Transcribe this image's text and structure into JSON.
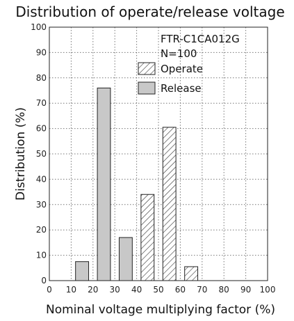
{
  "chart_data": {
    "type": "bar",
    "title": "Distribution of operate/release voltage",
    "xlabel": "Nominal voltage multiplying factor (%)",
    "ylabel": "Distribution (%)",
    "xlim": [
      0,
      100
    ],
    "ylim": [
      0,
      100
    ],
    "xticks": [
      "0",
      "10",
      "20",
      "30",
      "40",
      "50",
      "60",
      "70",
      "80",
      "90",
      "100"
    ],
    "yticks": [
      "0",
      "10",
      "20",
      "30",
      "40",
      "50",
      "60",
      "70",
      "80",
      "90",
      "100"
    ],
    "grid": true,
    "annotations": [
      "FTR-C1CA012G",
      "N=100"
    ],
    "legend_position": "top-right",
    "series": [
      {
        "name": "Operate",
        "pattern": "hatched",
        "x": [
          45,
          55,
          65
        ],
        "values": [
          34,
          60.5,
          5.5
        ]
      },
      {
        "name": "Release",
        "color": "#c8c8c8",
        "x": [
          15,
          25,
          35
        ],
        "values": [
          7.5,
          76,
          17
        ]
      }
    ]
  }
}
